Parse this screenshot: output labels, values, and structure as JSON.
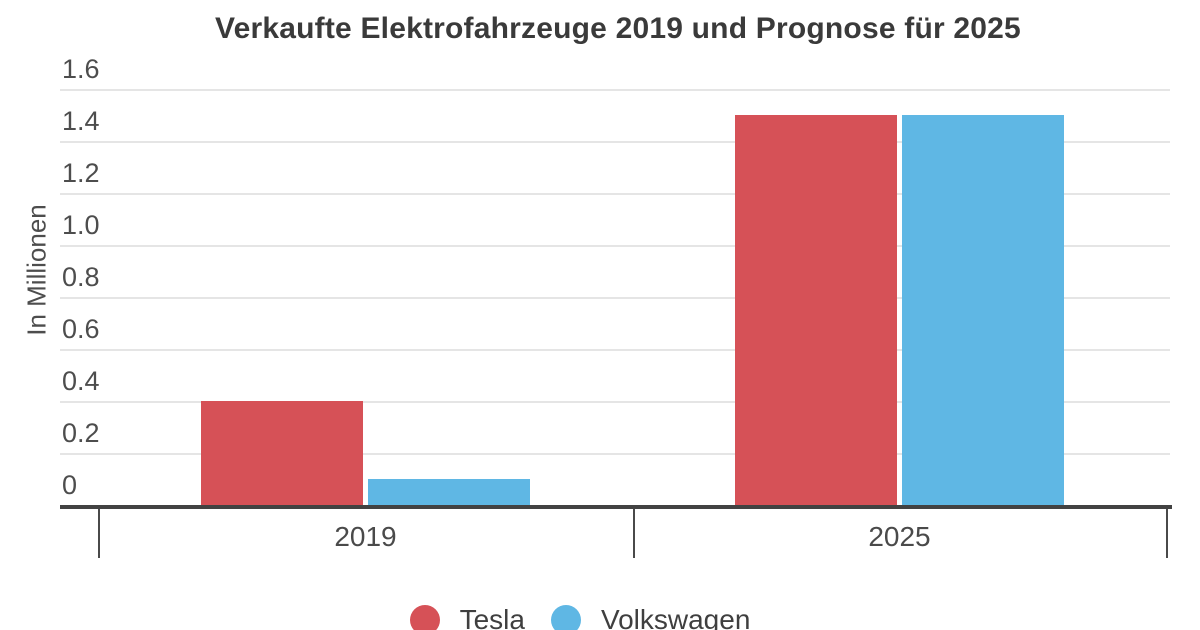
{
  "chart_data": {
    "type": "bar",
    "title": "Verkaufte Elektrofahrzeuge 2019 und Prognose für 2025",
    "ylabel": "In Millionen",
    "xlabel": "",
    "categories": [
      "2019",
      "2025"
    ],
    "series": [
      {
        "name": "Tesla",
        "color": "#d65157",
        "values": [
          0.4,
          1.5
        ]
      },
      {
        "name": "Volkswagen",
        "color": "#5fb7e4",
        "values": [
          0.1,
          1.5
        ]
      }
    ],
    "ylim": [
      0,
      1.6
    ],
    "ytick_step": 0.2,
    "yticks": [
      "1.6",
      "1.4",
      "1.2",
      "1.0",
      "0.8",
      "0.6",
      "0.4",
      "0.2",
      "0"
    ],
    "grid": true,
    "legend_position": "bottom"
  },
  "legend": {
    "items": [
      {
        "label": "Tesla",
        "color": "#d65157"
      },
      {
        "label": "Volkswagen",
        "color": "#5fb7e4"
      }
    ]
  }
}
